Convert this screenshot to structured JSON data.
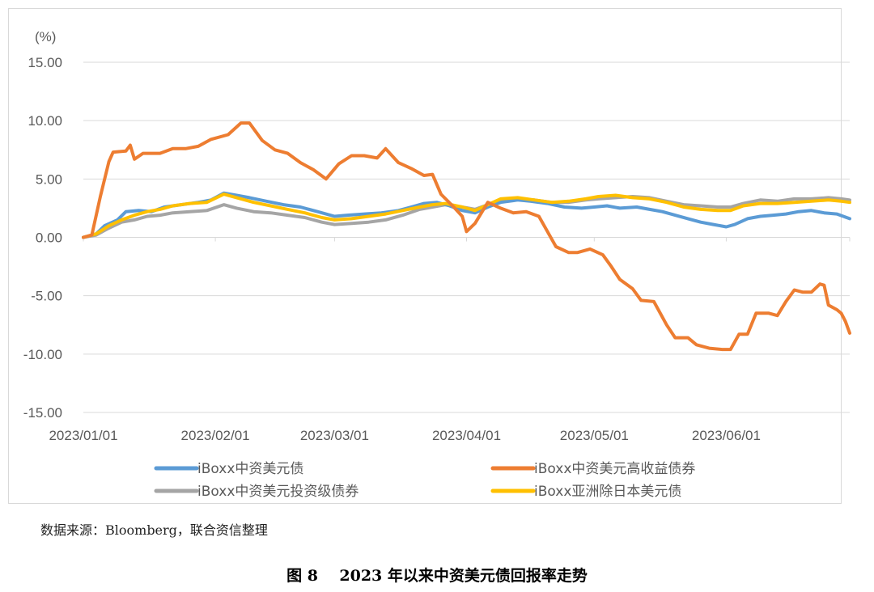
{
  "page": {
    "source_note": "数据来源：Bloomberg，联合资信整理",
    "figure_caption": "图 8    2023 年以来中资美元债回报率走势"
  },
  "chart_data": {
    "type": "line",
    "title": "",
    "unit_label": "(%)",
    "xlabel": "",
    "ylabel": "",
    "ylim": [
      -15,
      15
    ],
    "yticks": [
      15,
      10,
      5,
      0,
      -5,
      -10,
      -15
    ],
    "ytick_labels": [
      "15.00",
      "10.00",
      "5.00",
      "0.00",
      "-5.00",
      "-10.00",
      "-15.00"
    ],
    "x_range": [
      "2023-01-01",
      "2023-06-30"
    ],
    "xticks": [
      {
        "date": "2023-01-01",
        "label": "2023/01/01"
      },
      {
        "date": "2023-02-01",
        "label": "2023/02/01"
      },
      {
        "date": "2023-03-01",
        "label": "2023/03/01"
      },
      {
        "date": "2023-04-01",
        "label": "2023/04/01"
      },
      {
        "date": "2023-05-01",
        "label": "2023/05/01"
      },
      {
        "date": "2023-06-01",
        "label": "2023/06/01"
      }
    ],
    "grid": "horizontal",
    "legend_position": "bottom",
    "series": [
      {
        "name": "iBoxx中资美元债",
        "color": "#5b9bd5",
        "points": [
          [
            "2023-01-01",
            0.0
          ],
          [
            "2023-01-04",
            0.3
          ],
          [
            "2023-01-06",
            1.0
          ],
          [
            "2023-01-09",
            1.5
          ],
          [
            "2023-01-11",
            2.2
          ],
          [
            "2023-01-14",
            2.3
          ],
          [
            "2023-01-17",
            2.2
          ],
          [
            "2023-01-20",
            2.6
          ],
          [
            "2023-01-24",
            2.8
          ],
          [
            "2023-01-28",
            3.0
          ],
          [
            "2023-01-31",
            3.2
          ],
          [
            "2023-02-03",
            3.8
          ],
          [
            "2023-02-06",
            3.6
          ],
          [
            "2023-02-09",
            3.4
          ],
          [
            "2023-02-13",
            3.1
          ],
          [
            "2023-02-17",
            2.8
          ],
          [
            "2023-02-21",
            2.6
          ],
          [
            "2023-02-25",
            2.2
          ],
          [
            "2023-03-01",
            1.8
          ],
          [
            "2023-03-04",
            1.9
          ],
          [
            "2023-03-08",
            2.0
          ],
          [
            "2023-03-12",
            2.1
          ],
          [
            "2023-03-16",
            2.3
          ],
          [
            "2023-03-19",
            2.6
          ],
          [
            "2023-03-22",
            2.9
          ],
          [
            "2023-03-25",
            3.0
          ],
          [
            "2023-03-28",
            2.7
          ],
          [
            "2023-03-31",
            2.3
          ],
          [
            "2023-04-03",
            2.1
          ],
          [
            "2023-04-06",
            2.6
          ],
          [
            "2023-04-09",
            3.0
          ],
          [
            "2023-04-13",
            3.2
          ],
          [
            "2023-04-16",
            3.1
          ],
          [
            "2023-04-20",
            2.9
          ],
          [
            "2023-04-24",
            2.6
          ],
          [
            "2023-04-28",
            2.5
          ],
          [
            "2023-05-01",
            2.6
          ],
          [
            "2023-05-04",
            2.7
          ],
          [
            "2023-05-07",
            2.5
          ],
          [
            "2023-05-11",
            2.6
          ],
          [
            "2023-05-14",
            2.4
          ],
          [
            "2023-05-17",
            2.2
          ],
          [
            "2023-05-20",
            1.9
          ],
          [
            "2023-05-23",
            1.6
          ],
          [
            "2023-05-26",
            1.3
          ],
          [
            "2023-05-29",
            1.1
          ],
          [
            "2023-06-01",
            0.9
          ],
          [
            "2023-06-03",
            1.1
          ],
          [
            "2023-06-06",
            1.6
          ],
          [
            "2023-06-09",
            1.8
          ],
          [
            "2023-06-12",
            1.9
          ],
          [
            "2023-06-15",
            2.0
          ],
          [
            "2023-06-18",
            2.2
          ],
          [
            "2023-06-21",
            2.3
          ],
          [
            "2023-06-24",
            2.1
          ],
          [
            "2023-06-27",
            2.0
          ],
          [
            "2023-06-30",
            1.6
          ]
        ]
      },
      {
        "name": "iBoxx中资美元高收益债券",
        "color": "#ed7d31",
        "points": [
          [
            "2023-01-01",
            0.0
          ],
          [
            "2023-01-03",
            0.2
          ],
          [
            "2023-01-05",
            3.5
          ],
          [
            "2023-01-07",
            6.5
          ],
          [
            "2023-01-08",
            7.3
          ],
          [
            "2023-01-11",
            7.4
          ],
          [
            "2023-01-12",
            7.9
          ],
          [
            "2023-01-13",
            6.7
          ],
          [
            "2023-01-15",
            7.2
          ],
          [
            "2023-01-19",
            7.2
          ],
          [
            "2023-01-22",
            7.6
          ],
          [
            "2023-01-25",
            7.6
          ],
          [
            "2023-01-28",
            7.8
          ],
          [
            "2023-01-31",
            8.4
          ],
          [
            "2023-02-04",
            8.8
          ],
          [
            "2023-02-07",
            9.8
          ],
          [
            "2023-02-09",
            9.8
          ],
          [
            "2023-02-12",
            8.3
          ],
          [
            "2023-02-15",
            7.5
          ],
          [
            "2023-02-18",
            7.2
          ],
          [
            "2023-02-21",
            6.4
          ],
          [
            "2023-02-24",
            5.8
          ],
          [
            "2023-02-27",
            5.0
          ],
          [
            "2023-03-02",
            6.3
          ],
          [
            "2023-03-05",
            7.0
          ],
          [
            "2023-03-08",
            7.0
          ],
          [
            "2023-03-11",
            6.8
          ],
          [
            "2023-03-13",
            7.6
          ],
          [
            "2023-03-16",
            6.4
          ],
          [
            "2023-03-19",
            5.9
          ],
          [
            "2023-03-22",
            5.3
          ],
          [
            "2023-03-24",
            5.4
          ],
          [
            "2023-03-26",
            3.7
          ],
          [
            "2023-03-29",
            2.6
          ],
          [
            "2023-03-31",
            1.8
          ],
          [
            "2023-04-01",
            0.5
          ],
          [
            "2023-04-03",
            1.2
          ],
          [
            "2023-04-06",
            3.0
          ],
          [
            "2023-04-09",
            2.5
          ],
          [
            "2023-04-12",
            2.1
          ],
          [
            "2023-04-15",
            2.2
          ],
          [
            "2023-04-18",
            1.8
          ],
          [
            "2023-04-20",
            0.5
          ],
          [
            "2023-04-22",
            -0.8
          ],
          [
            "2023-04-25",
            -1.3
          ],
          [
            "2023-04-27",
            -1.3
          ],
          [
            "2023-04-30",
            -1.0
          ],
          [
            "2023-05-03",
            -1.5
          ],
          [
            "2023-05-05",
            -2.5
          ],
          [
            "2023-05-07",
            -3.6
          ],
          [
            "2023-05-10",
            -4.4
          ],
          [
            "2023-05-12",
            -5.4
          ],
          [
            "2023-05-15",
            -5.5
          ],
          [
            "2023-05-18",
            -7.5
          ],
          [
            "2023-05-20",
            -8.6
          ],
          [
            "2023-05-23",
            -8.6
          ],
          [
            "2023-05-25",
            -9.2
          ],
          [
            "2023-05-28",
            -9.5
          ],
          [
            "2023-05-31",
            -9.6
          ],
          [
            "2023-06-02",
            -9.6
          ],
          [
            "2023-06-04",
            -8.3
          ],
          [
            "2023-06-06",
            -8.3
          ],
          [
            "2023-06-08",
            -6.5
          ],
          [
            "2023-06-11",
            -6.5
          ],
          [
            "2023-06-13",
            -6.7
          ],
          [
            "2023-06-15",
            -5.5
          ],
          [
            "2023-06-17",
            -4.5
          ],
          [
            "2023-06-19",
            -4.7
          ],
          [
            "2023-06-21",
            -4.7
          ],
          [
            "2023-06-23",
            -4.0
          ],
          [
            "2023-06-24",
            -4.1
          ],
          [
            "2023-06-25",
            -5.8
          ],
          [
            "2023-06-27",
            -6.2
          ],
          [
            "2023-06-28",
            -6.5
          ],
          [
            "2023-06-29",
            -7.2
          ],
          [
            "2023-06-30",
            -8.2
          ]
        ]
      },
      {
        "name": "iBoxx中资美元投资级债券",
        "color": "#a5a5a5",
        "points": [
          [
            "2023-01-01",
            0.0
          ],
          [
            "2023-01-04",
            0.2
          ],
          [
            "2023-01-07",
            0.8
          ],
          [
            "2023-01-10",
            1.3
          ],
          [
            "2023-01-13",
            1.5
          ],
          [
            "2023-01-16",
            1.8
          ],
          [
            "2023-01-19",
            1.9
          ],
          [
            "2023-01-22",
            2.1
          ],
          [
            "2023-01-26",
            2.2
          ],
          [
            "2023-01-30",
            2.3
          ],
          [
            "2023-02-03",
            2.8
          ],
          [
            "2023-02-06",
            2.5
          ],
          [
            "2023-02-10",
            2.2
          ],
          [
            "2023-02-14",
            2.1
          ],
          [
            "2023-02-18",
            1.9
          ],
          [
            "2023-02-22",
            1.7
          ],
          [
            "2023-02-26",
            1.3
          ],
          [
            "2023-03-01",
            1.1
          ],
          [
            "2023-03-05",
            1.2
          ],
          [
            "2023-03-09",
            1.3
          ],
          [
            "2023-03-13",
            1.5
          ],
          [
            "2023-03-17",
            1.9
          ],
          [
            "2023-03-21",
            2.4
          ],
          [
            "2023-03-24",
            2.6
          ],
          [
            "2023-03-27",
            2.8
          ],
          [
            "2023-03-31",
            2.6
          ],
          [
            "2023-04-03",
            2.4
          ],
          [
            "2023-04-06",
            2.8
          ],
          [
            "2023-04-09",
            3.2
          ],
          [
            "2023-04-13",
            3.3
          ],
          [
            "2023-04-17",
            3.2
          ],
          [
            "2023-04-21",
            3.0
          ],
          [
            "2023-04-25",
            3.0
          ],
          [
            "2023-04-29",
            3.2
          ],
          [
            "2023-05-02",
            3.3
          ],
          [
            "2023-05-06",
            3.4
          ],
          [
            "2023-05-10",
            3.5
          ],
          [
            "2023-05-14",
            3.4
          ],
          [
            "2023-05-18",
            3.1
          ],
          [
            "2023-05-22",
            2.8
          ],
          [
            "2023-05-26",
            2.7
          ],
          [
            "2023-05-30",
            2.6
          ],
          [
            "2023-06-02",
            2.6
          ],
          [
            "2023-06-05",
            2.9
          ],
          [
            "2023-06-09",
            3.2
          ],
          [
            "2023-06-13",
            3.1
          ],
          [
            "2023-06-17",
            3.3
          ],
          [
            "2023-06-21",
            3.3
          ],
          [
            "2023-06-25",
            3.4
          ],
          [
            "2023-06-28",
            3.3
          ],
          [
            "2023-06-30",
            3.2
          ]
        ]
      },
      {
        "name": "iBoxx亚洲除日本美元债",
        "color": "#ffc000",
        "points": [
          [
            "2023-01-01",
            0.0
          ],
          [
            "2023-01-04",
            0.3
          ],
          [
            "2023-01-07",
            1.0
          ],
          [
            "2023-01-10",
            1.5
          ],
          [
            "2023-01-13",
            1.9
          ],
          [
            "2023-01-16",
            2.2
          ],
          [
            "2023-01-19",
            2.4
          ],
          [
            "2023-01-22",
            2.7
          ],
          [
            "2023-01-26",
            2.9
          ],
          [
            "2023-01-30",
            3.0
          ],
          [
            "2023-02-03",
            3.7
          ],
          [
            "2023-02-06",
            3.4
          ],
          [
            "2023-02-10",
            3.0
          ],
          [
            "2023-02-14",
            2.7
          ],
          [
            "2023-02-18",
            2.4
          ],
          [
            "2023-02-22",
            2.1
          ],
          [
            "2023-02-26",
            1.7
          ],
          [
            "2023-03-01",
            1.5
          ],
          [
            "2023-03-05",
            1.6
          ],
          [
            "2023-03-09",
            1.8
          ],
          [
            "2023-03-13",
            2.0
          ],
          [
            "2023-03-17",
            2.3
          ],
          [
            "2023-03-21",
            2.6
          ],
          [
            "2023-03-24",
            2.8
          ],
          [
            "2023-03-27",
            2.9
          ],
          [
            "2023-03-31",
            2.6
          ],
          [
            "2023-04-03",
            2.3
          ],
          [
            "2023-04-06",
            2.8
          ],
          [
            "2023-04-09",
            3.3
          ],
          [
            "2023-04-13",
            3.4
          ],
          [
            "2023-04-17",
            3.2
          ],
          [
            "2023-04-21",
            3.0
          ],
          [
            "2023-04-25",
            3.1
          ],
          [
            "2023-04-29",
            3.3
          ],
          [
            "2023-05-02",
            3.5
          ],
          [
            "2023-05-06",
            3.6
          ],
          [
            "2023-05-10",
            3.4
          ],
          [
            "2023-05-14",
            3.3
          ],
          [
            "2023-05-18",
            3.0
          ],
          [
            "2023-05-22",
            2.6
          ],
          [
            "2023-05-26",
            2.4
          ],
          [
            "2023-05-30",
            2.3
          ],
          [
            "2023-06-02",
            2.3
          ],
          [
            "2023-06-05",
            2.7
          ],
          [
            "2023-06-09",
            2.9
          ],
          [
            "2023-06-13",
            2.9
          ],
          [
            "2023-06-17",
            3.0
          ],
          [
            "2023-06-21",
            3.1
          ],
          [
            "2023-06-25",
            3.2
          ],
          [
            "2023-06-28",
            3.1
          ],
          [
            "2023-06-30",
            3.0
          ]
        ]
      }
    ]
  }
}
